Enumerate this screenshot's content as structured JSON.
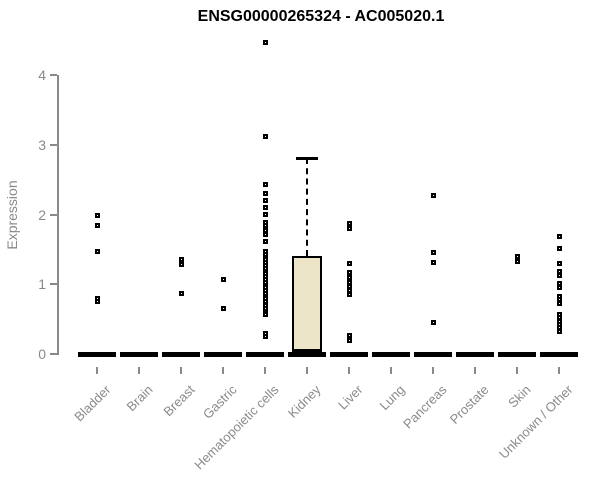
{
  "title": "ENSG00000265324 - AC005020.1",
  "colors": {
    "background": "#ffffff",
    "title_text": "#000000",
    "axis": "#8a8a8a",
    "axis_text": "#8a8a8a",
    "point": "#000000",
    "box_fill": "#ece5c8",
    "box_border": "#000000",
    "zero_dash": "#000000"
  },
  "chart_data": {
    "type": "boxplot",
    "title": "ENSG00000265324 - AC005020.1",
    "xlabel": "",
    "ylabel": "Expression",
    "ylim": [
      0,
      4.6
    ],
    "yticks": [
      "0",
      "1",
      "2",
      "3",
      "4"
    ],
    "grid": false,
    "legend": false,
    "categories": [
      "Bladder",
      "Brain",
      "Breast",
      "Gastric",
      "Hematopoietic cells",
      "Kidney",
      "Liver",
      "Lung",
      "Pancreas",
      "Prostate",
      "Skin",
      "Unknown / Other"
    ],
    "series": [
      {
        "name": "Bladder",
        "zero_mass": true,
        "box": null,
        "points": [
          1.99,
          1.85,
          1.47,
          0.8,
          0.76
        ]
      },
      {
        "name": "Brain",
        "zero_mass": true,
        "box": null,
        "points": []
      },
      {
        "name": "Breast",
        "zero_mass": true,
        "box": null,
        "points": [
          1.36,
          1.28,
          0.87
        ]
      },
      {
        "name": "Gastric",
        "zero_mass": true,
        "box": null,
        "points": [
          1.07,
          0.66
        ]
      },
      {
        "name": "Hematopoietic cells",
        "zero_mass": true,
        "box": null,
        "points": [
          4.47,
          3.12,
          2.44,
          2.31,
          2.2,
          2.11,
          2.0,
          1.89,
          1.84,
          1.78,
          1.72,
          1.61,
          1.47,
          1.43,
          1.39,
          1.35,
          1.31,
          1.27,
          1.23,
          1.19,
          1.15,
          1.11,
          1.07,
          1.03,
          0.99,
          0.95,
          0.91,
          0.87,
          0.83,
          0.79,
          0.75,
          0.7,
          0.65,
          0.6,
          0.56,
          0.3,
          0.25
        ]
      },
      {
        "name": "Kidney",
        "zero_mass": true,
        "box": {
          "q1": 0.0,
          "median": 0.03,
          "q3": 1.41,
          "whisker_low": 0.0,
          "whisker_high": 2.81
        },
        "points": []
      },
      {
        "name": "Liver",
        "zero_mass": true,
        "box": null,
        "points": [
          1.88,
          1.8,
          1.3,
          1.17,
          1.1,
          1.03,
          0.97,
          0.91,
          0.85,
          0.26,
          0.2
        ]
      },
      {
        "name": "Lung",
        "zero_mass": true,
        "box": null,
        "points": []
      },
      {
        "name": "Pancreas",
        "zero_mass": true,
        "box": null,
        "points": [
          2.28,
          1.46,
          1.32,
          0.45
        ]
      },
      {
        "name": "Prostate",
        "zero_mass": true,
        "box": null,
        "points": []
      },
      {
        "name": "Skin",
        "zero_mass": true,
        "box": null,
        "points": [
          1.4,
          1.33
        ]
      },
      {
        "name": "Unknown / Other",
        "zero_mass": true,
        "box": null,
        "points": [
          1.68,
          1.52,
          1.3,
          1.18,
          1.12,
          1.01,
          0.95,
          0.83,
          0.78,
          0.73,
          0.57,
          0.52,
          0.47,
          0.43,
          0.38,
          0.33
        ]
      }
    ]
  }
}
